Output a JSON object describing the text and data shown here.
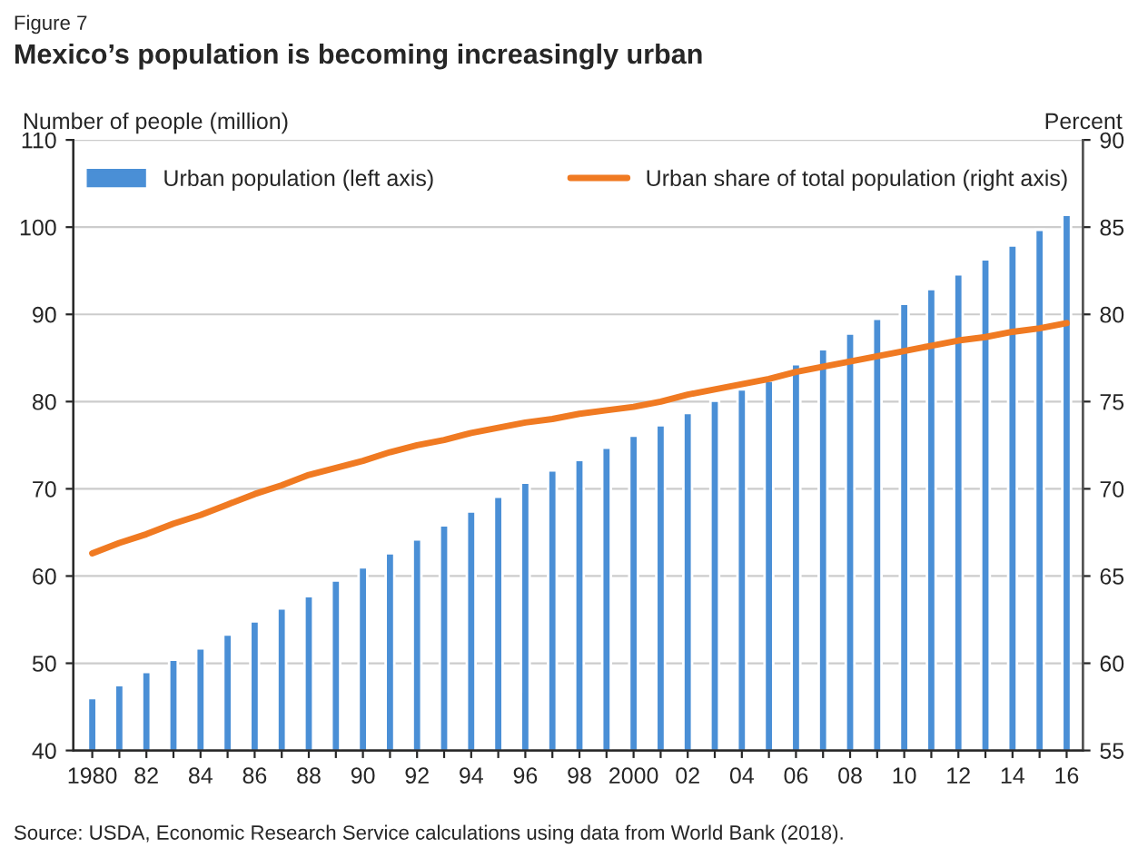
{
  "chart_data": {
    "type": "bar",
    "subtitle": "Figure 7",
    "title": "Mexico’s population is becoming increasingly urban",
    "ylabel": "Number of people (million)",
    "y2label": "Percent",
    "categories": [
      "1980",
      null,
      "82",
      null,
      "84",
      null,
      "86",
      null,
      "88",
      null,
      "90",
      null,
      "92",
      null,
      "94",
      null,
      "96",
      null,
      "98",
      null,
      "2000",
      null,
      "02",
      null,
      "04",
      null,
      "06",
      null,
      "08",
      null,
      "10",
      null,
      "12",
      null,
      "14",
      null,
      "16"
    ],
    "series": [
      {
        "name": "Urban population (left axis)",
        "color": "#4a8fd6",
        "values": [
          46.0,
          47.5,
          49.0,
          50.4,
          51.7,
          53.3,
          54.8,
          56.3,
          57.7,
          59.5,
          61.0,
          62.6,
          64.2,
          65.8,
          67.4,
          69.1,
          70.7,
          72.1,
          73.3,
          74.7,
          76.1,
          77.3,
          78.7,
          80.1,
          81.4,
          82.4,
          84.3,
          86.0,
          87.8,
          89.5,
          91.2,
          92.9,
          94.6,
          96.3,
          97.9,
          99.7,
          101.4
        ]
      },
      {
        "name": "Urban share of total population (right axis)",
        "type": "line",
        "axis": "y2",
        "color": "#f07a22",
        "values": [
          66.3,
          66.9,
          67.4,
          68.0,
          68.5,
          69.1,
          69.7,
          70.2,
          70.8,
          71.2,
          71.6,
          72.1,
          72.5,
          72.8,
          73.2,
          73.5,
          73.8,
          74.0,
          74.3,
          74.5,
          74.7,
          75.0,
          75.4,
          75.7,
          76.0,
          76.3,
          76.7,
          77.0,
          77.3,
          77.6,
          77.9,
          78.2,
          78.5,
          78.7,
          79.0,
          79.2,
          79.5
        ]
      }
    ],
    "ylim": [
      40,
      110
    ],
    "yticks": [
      40,
      50,
      60,
      70,
      80,
      90,
      100,
      110
    ],
    "y2lim": [
      55,
      90
    ],
    "y2ticks": [
      55,
      60,
      65,
      70,
      75,
      80,
      85,
      90
    ],
    "grid": "y",
    "legend": "top",
    "annotations": [
      "Source: USDA, Economic Research Service calculations using data from World Bank (2018)."
    ]
  }
}
